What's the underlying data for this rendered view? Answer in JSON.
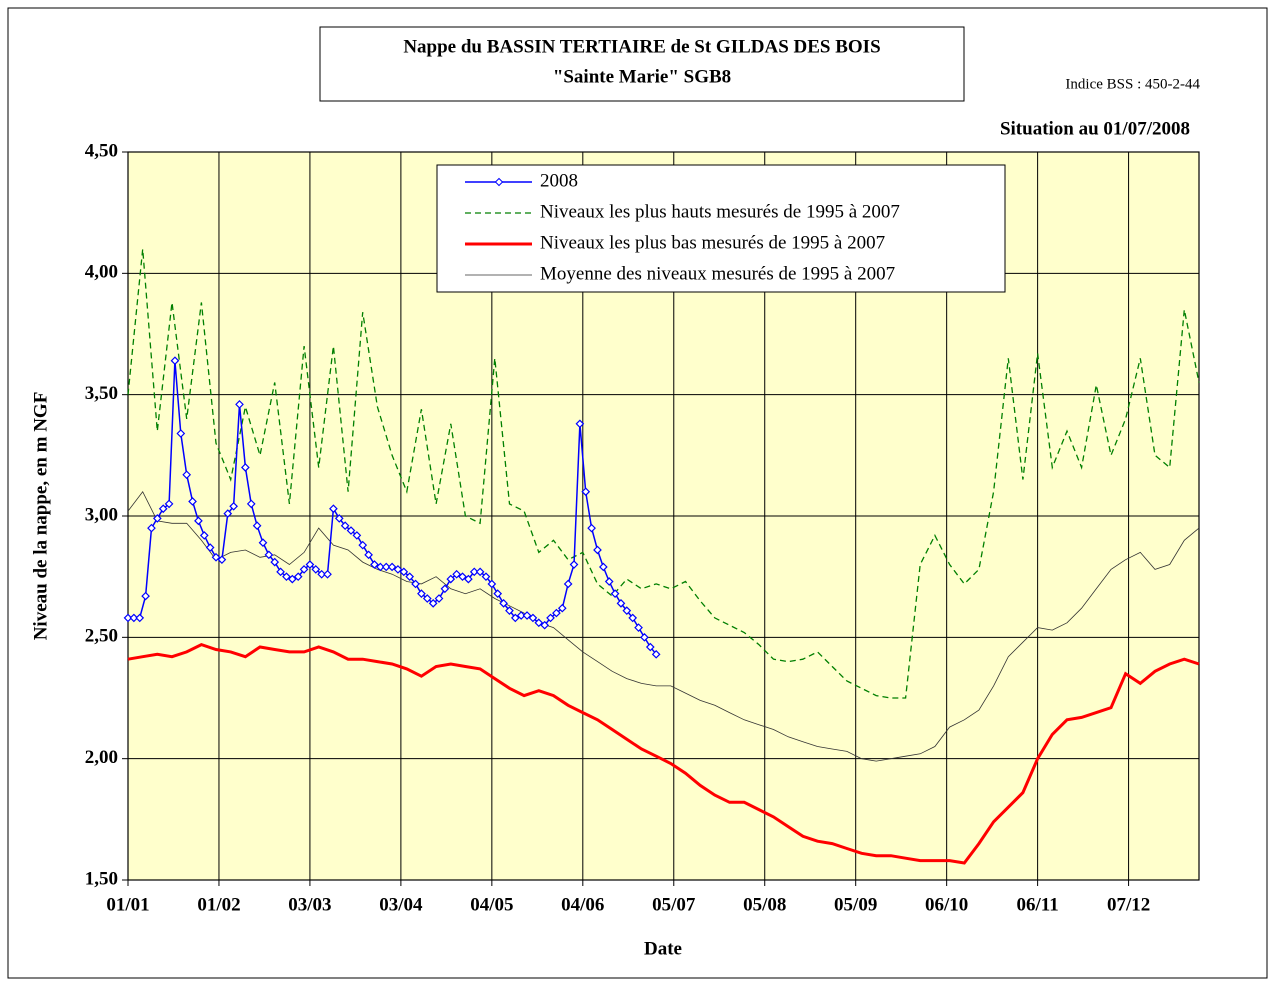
{
  "chart_data": {
    "type": "line",
    "title": "Nappe du BASSIN TERTIAIRE de St GILDAS DES BOIS",
    "subtitle": "\"Sainte Marie\" SGB8",
    "annotations": [
      "Indice BSS : 450-2-44",
      "Situation au 01/07/2008"
    ],
    "xlabel": "Date",
    "ylabel": "Niveau de la nappe, en m NGF",
    "xlim": [
      0,
      365
    ],
    "xticks": [
      {
        "value": 0,
        "label": "01/01"
      },
      {
        "value": 31,
        "label": "01/02"
      },
      {
        "value": 62,
        "label": "03/03"
      },
      {
        "value": 93,
        "label": "03/04"
      },
      {
        "value": 124,
        "label": "04/05"
      },
      {
        "value": 155,
        "label": "04/06"
      },
      {
        "value": 186,
        "label": "05/07"
      },
      {
        "value": 217,
        "label": "05/08"
      },
      {
        "value": 248,
        "label": "05/09"
      },
      {
        "value": 279,
        "label": "06/10"
      },
      {
        "value": 310,
        "label": "06/11"
      },
      {
        "value": 341,
        "label": "07/12"
      }
    ],
    "ylim": [
      1.5,
      4.5
    ],
    "yticks": [
      {
        "value": 1.5,
        "label": "1,50"
      },
      {
        "value": 2,
        "label": "2,00"
      },
      {
        "value": 2.5,
        "label": "2,50"
      },
      {
        "value": 3,
        "label": "3,00"
      },
      {
        "value": 3.5,
        "label": "3,50"
      },
      {
        "value": 4,
        "label": "4,00"
      },
      {
        "value": 4.5,
        "label": "4,50"
      }
    ],
    "grid": true,
    "legend": "top",
    "background": "#ffffcc",
    "series": [
      {
        "name": "2008",
        "color": "#0000ff",
        "dash": "solid",
        "width": 1.5,
        "marker": "diamond",
        "x": [
          0,
          2,
          4,
          6,
          8,
          10,
          12,
          14,
          16,
          18,
          20,
          22,
          24,
          26,
          28,
          30,
          32,
          34,
          36,
          38,
          40,
          42,
          44,
          46,
          48,
          50,
          52,
          54,
          56,
          58,
          60,
          62,
          64,
          66,
          68,
          70,
          72,
          74,
          76,
          78,
          80,
          82,
          84,
          86,
          88,
          90,
          92,
          94,
          96,
          98,
          100,
          102,
          104,
          106,
          108,
          110,
          112,
          114,
          116,
          118,
          120,
          122,
          124,
          126,
          128,
          130,
          132,
          134,
          136,
          138,
          140,
          142,
          144,
          146,
          148,
          150,
          152,
          154,
          156,
          158,
          160,
          162,
          164,
          166,
          168,
          170,
          172,
          174,
          176,
          178,
          180
        ],
        "values": [
          2.58,
          2.58,
          2.58,
          2.67,
          2.95,
          2.99,
          3.03,
          3.05,
          3.64,
          3.34,
          3.17,
          3.06,
          2.98,
          2.92,
          2.87,
          2.83,
          2.82,
          3.01,
          3.04,
          3.46,
          3.2,
          3.05,
          2.96,
          2.89,
          2.84,
          2.81,
          2.77,
          2.75,
          2.74,
          2.75,
          2.78,
          2.8,
          2.78,
          2.76,
          2.76,
          3.03,
          2.99,
          2.96,
          2.94,
          2.92,
          2.88,
          2.84,
          2.8,
          2.79,
          2.79,
          2.79,
          2.78,
          2.77,
          2.75,
          2.72,
          2.68,
          2.66,
          2.64,
          2.66,
          2.7,
          2.74,
          2.76,
          2.75,
          2.74,
          2.77,
          2.77,
          2.75,
          2.72,
          2.68,
          2.64,
          2.61,
          2.58,
          2.59,
          2.59,
          2.58,
          2.56,
          2.55,
          2.58,
          2.6,
          2.62,
          2.72,
          2.8,
          3.38,
          3.1,
          2.95,
          2.86,
          2.79,
          2.73,
          2.68,
          2.64,
          2.61,
          2.58,
          2.54,
          2.5,
          2.46,
          2.43
        ]
      },
      {
        "name": "Niveaux les plus hauts mesurés de 1995 à 2007",
        "color": "#007f00",
        "dash": "dashed",
        "width": 1.3,
        "x": [
          0,
          5,
          10,
          15,
          20,
          25,
          30,
          35,
          40,
          45,
          50,
          55,
          60,
          65,
          70,
          75,
          80,
          85,
          90,
          95,
          100,
          105,
          110,
          115,
          120,
          125,
          130,
          135,
          140,
          145,
          150,
          155,
          160,
          165,
          170,
          175,
          180,
          185,
          190,
          195,
          200,
          205,
          210,
          215,
          220,
          225,
          230,
          235,
          240,
          245,
          250,
          255,
          260,
          265,
          270,
          275,
          280,
          285,
          290,
          295,
          300,
          305,
          310,
          315,
          320,
          325,
          330,
          335,
          340,
          345,
          350,
          355,
          360,
          365
        ],
        "values": [
          3.5,
          4.1,
          3.35,
          3.88,
          3.4,
          3.88,
          3.3,
          3.15,
          3.45,
          3.25,
          3.55,
          3.05,
          3.7,
          3.2,
          3.7,
          3.1,
          3.84,
          3.45,
          3.25,
          3.1,
          3.44,
          3.05,
          3.38,
          3.0,
          2.97,
          3.65,
          3.05,
          3.02,
          2.85,
          2.9,
          2.82,
          2.85,
          2.72,
          2.67,
          2.74,
          2.7,
          2.72,
          2.7,
          2.73,
          2.65,
          2.58,
          2.55,
          2.52,
          2.47,
          2.41,
          2.4,
          2.41,
          2.44,
          2.38,
          2.32,
          2.29,
          2.26,
          2.25,
          2.25,
          2.8,
          2.92,
          2.8,
          2.72,
          2.78,
          3.1,
          3.65,
          3.15,
          3.67,
          3.2,
          3.35,
          3.2,
          3.54,
          3.25,
          3.4,
          3.65,
          3.25,
          3.2,
          3.85,
          3.55
        ]
      },
      {
        "name": "Niveaux les plus bas mesurés de 1995 à 2007",
        "color": "#ff0000",
        "dash": "solid",
        "width": 3,
        "x": [
          0,
          5,
          10,
          15,
          20,
          25,
          30,
          35,
          40,
          45,
          50,
          55,
          60,
          65,
          70,
          75,
          80,
          85,
          90,
          95,
          100,
          105,
          110,
          115,
          120,
          125,
          130,
          135,
          140,
          145,
          150,
          155,
          160,
          165,
          170,
          175,
          180,
          185,
          190,
          195,
          200,
          205,
          210,
          215,
          220,
          225,
          230,
          235,
          240,
          245,
          250,
          255,
          260,
          265,
          270,
          275,
          280,
          285,
          290,
          295,
          300,
          305,
          310,
          315,
          320,
          325,
          330,
          335,
          340,
          345,
          350,
          355,
          360,
          365
        ],
        "values": [
          2.41,
          2.42,
          2.43,
          2.42,
          2.44,
          2.47,
          2.45,
          2.44,
          2.42,
          2.46,
          2.45,
          2.44,
          2.44,
          2.46,
          2.44,
          2.41,
          2.41,
          2.4,
          2.39,
          2.37,
          2.34,
          2.38,
          2.39,
          2.38,
          2.37,
          2.33,
          2.29,
          2.26,
          2.28,
          2.26,
          2.22,
          2.19,
          2.16,
          2.12,
          2.08,
          2.04,
          2.01,
          1.98,
          1.94,
          1.89,
          1.85,
          1.82,
          1.82,
          1.79,
          1.76,
          1.72,
          1.68,
          1.66,
          1.65,
          1.63,
          1.61,
          1.6,
          1.6,
          1.59,
          1.58,
          1.58,
          1.58,
          1.57,
          1.65,
          1.74,
          1.8,
          1.86,
          2.0,
          2.1,
          2.16,
          2.17,
          2.19,
          2.21,
          2.35,
          2.31,
          2.36,
          2.39,
          2.41,
          2.39
        ]
      },
      {
        "name": "Moyenne des niveaux mesurés de 1995 à 2007",
        "color": "#333333",
        "dash": "thin",
        "width": 0.8,
        "x": [
          0,
          5,
          10,
          15,
          20,
          25,
          30,
          35,
          40,
          45,
          50,
          55,
          60,
          65,
          70,
          75,
          80,
          85,
          90,
          95,
          100,
          105,
          110,
          115,
          120,
          125,
          130,
          135,
          140,
          145,
          150,
          155,
          160,
          165,
          170,
          175,
          180,
          185,
          190,
          195,
          200,
          205,
          210,
          215,
          220,
          225,
          230,
          235,
          240,
          245,
          250,
          255,
          260,
          265,
          270,
          275,
          280,
          285,
          290,
          295,
          300,
          305,
          310,
          315,
          320,
          325,
          330,
          335,
          340,
          345,
          350,
          355,
          360,
          365
        ],
        "values": [
          3.02,
          3.1,
          2.98,
          2.97,
          2.97,
          2.9,
          2.82,
          2.85,
          2.86,
          2.83,
          2.84,
          2.8,
          2.85,
          2.95,
          2.88,
          2.86,
          2.81,
          2.78,
          2.76,
          2.73,
          2.72,
          2.75,
          2.7,
          2.68,
          2.7,
          2.66,
          2.63,
          2.6,
          2.56,
          2.54,
          2.49,
          2.44,
          2.4,
          2.36,
          2.33,
          2.31,
          2.3,
          2.3,
          2.27,
          2.24,
          2.22,
          2.19,
          2.16,
          2.14,
          2.12,
          2.09,
          2.07,
          2.05,
          2.04,
          2.03,
          2.0,
          1.99,
          2.0,
          2.01,
          2.02,
          2.05,
          2.13,
          2.16,
          2.2,
          2.3,
          2.42,
          2.48,
          2.54,
          2.53,
          2.56,
          2.62,
          2.7,
          2.78,
          2.82,
          2.85,
          2.78,
          2.8,
          2.9,
          2.95
        ]
      }
    ]
  }
}
